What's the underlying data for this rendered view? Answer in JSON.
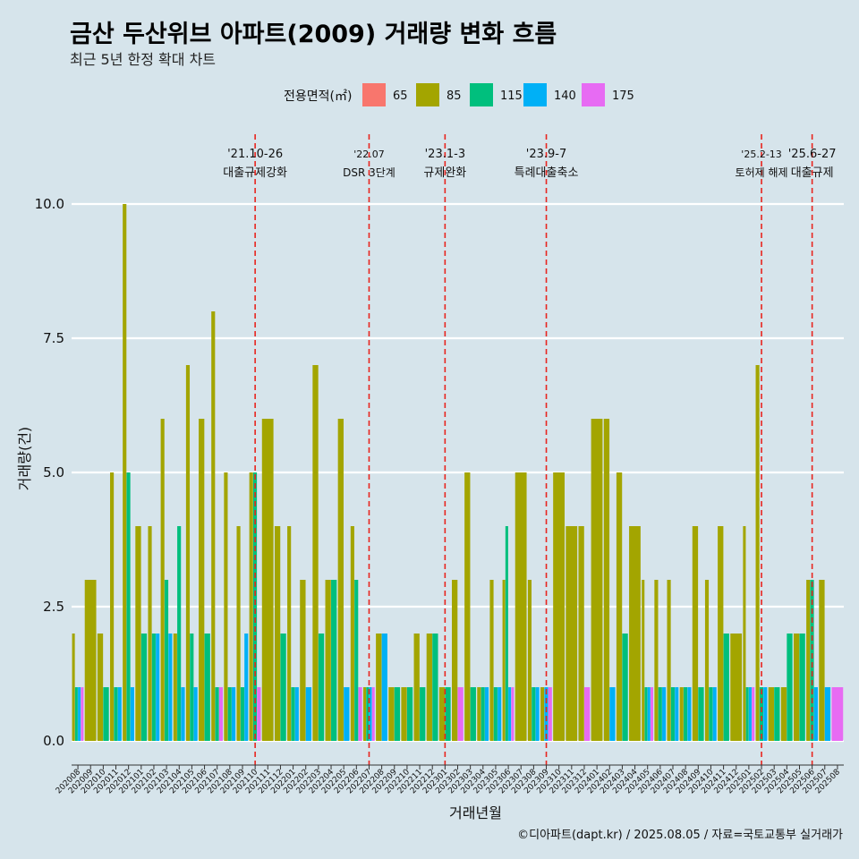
{
  "title": "금산 두산위브 아파트(2009) 거래량 변화 흐름",
  "subtitle": "최근 5년 한정 확대 차트",
  "caption": "©디아파트(dapt.kr) / 2025.08.05 / 자료=국토교통부 실거래가",
  "chart_data": {
    "type": "bar",
    "xlabel": "거래년월",
    "ylabel": "거래량(건)",
    "ylim": [
      -0.45,
      11.3
    ],
    "yticks": [
      0.0,
      2.5,
      5.0,
      7.5,
      10.0
    ],
    "legend": {
      "title": "전용면적(㎡)",
      "position": "top"
    },
    "months": [
      "202008",
      "202009",
      "202010",
      "202011",
      "202012",
      "202101",
      "202102",
      "202103",
      "202104",
      "202105",
      "202106",
      "202107",
      "202108",
      "202109",
      "202110",
      "202111",
      "202112",
      "202201",
      "202202",
      "202203",
      "202204",
      "202205",
      "202206",
      "202207",
      "202208",
      "202209",
      "202210",
      "202211",
      "202212",
      "202301",
      "202302",
      "202303",
      "202304",
      "202305",
      "202306",
      "202307",
      "202308",
      "202309",
      "202310",
      "202311",
      "202312",
      "202401",
      "202402",
      "202403",
      "202404",
      "202405",
      "202406",
      "202407",
      "202408",
      "202409",
      "202410",
      "202411",
      "202412",
      "202501",
      "202502",
      "202503",
      "202504",
      "202505",
      "202506",
      "202507",
      "202508"
    ],
    "series": [
      {
        "name": "65",
        "color": "#f8766d",
        "values": [
          0,
          0,
          0,
          0,
          0,
          0,
          0,
          0,
          0,
          0,
          0,
          0,
          0,
          0,
          0,
          0,
          0,
          0,
          0,
          0,
          0,
          0,
          0,
          0,
          0,
          0,
          0,
          0,
          0,
          0,
          0,
          0,
          0,
          0,
          0,
          0,
          0,
          0,
          0,
          0,
          0,
          0,
          0,
          0,
          0,
          0,
          0,
          0,
          0,
          0,
          0,
          0,
          0,
          0,
          0,
          0,
          0,
          0,
          0,
          0,
          0
        ]
      },
      {
        "name": "85",
        "color": "#a3a500",
        "values": [
          2,
          3,
          2,
          5,
          10,
          4,
          4,
          6,
          2,
          7,
          6,
          8,
          5,
          4,
          5,
          6,
          4,
          4,
          3,
          7,
          3,
          6,
          4,
          1,
          2,
          1,
          1,
          2,
          2,
          1,
          3,
          5,
          1,
          3,
          3,
          5,
          3,
          1,
          5,
          4,
          4,
          6,
          6,
          5,
          4,
          3,
          3,
          3,
          1,
          4,
          3,
          4,
          2,
          4,
          7,
          1,
          1,
          2,
          3,
          3,
          0
        ]
      },
      {
        "name": "115",
        "color": "#00bf7d",
        "values": [
          1,
          0,
          1,
          1,
          5,
          2,
          2,
          3,
          4,
          2,
          2,
          1,
          1,
          1,
          5,
          0,
          2,
          1,
          0,
          2,
          3,
          0,
          3,
          1,
          0,
          1,
          1,
          1,
          2,
          1,
          0,
          1,
          1,
          1,
          4,
          0,
          1,
          0,
          0,
          0,
          0,
          0,
          0,
          2,
          0,
          1,
          1,
          1,
          1,
          1,
          1,
          2,
          0,
          1,
          1,
          1,
          2,
          2,
          3,
          0,
          0
        ]
      },
      {
        "name": "140",
        "color": "#00b0f6",
        "values": [
          1,
          0,
          0,
          1,
          1,
          0,
          2,
          2,
          1,
          1,
          0,
          0,
          1,
          2,
          0,
          0,
          0,
          1,
          1,
          0,
          0,
          1,
          0,
          1,
          2,
          0,
          0,
          0,
          0,
          0,
          0,
          0,
          1,
          1,
          1,
          0,
          1,
          1,
          0,
          0,
          0,
          0,
          1,
          0,
          0,
          1,
          1,
          1,
          1,
          0,
          1,
          0,
          0,
          1,
          1,
          0,
          0,
          0,
          1,
          1,
          0
        ]
      },
      {
        "name": "175",
        "color": "#e76bf3",
        "values": [
          1,
          0,
          0,
          0,
          0,
          0,
          0,
          0,
          0,
          0,
          0,
          1,
          0,
          0,
          1,
          0,
          0,
          0,
          0,
          0,
          0,
          0,
          1,
          1,
          0,
          0,
          0,
          0,
          0,
          0,
          1,
          0,
          0,
          0,
          1,
          0,
          0,
          1,
          0,
          0,
          1,
          0,
          0,
          0,
          0,
          1,
          0,
          0,
          0,
          0,
          0,
          0,
          0,
          1,
          0,
          0,
          0,
          0,
          0,
          0,
          1
        ]
      }
    ],
    "annotations": [
      {
        "month": "202110",
        "date": "'21.10-26",
        "label": "대출규제강화"
      },
      {
        "month": "202207",
        "date": "'22.07",
        "label": "DSR 3단계"
      },
      {
        "month": "202301",
        "date": "'23.1-3",
        "label": "규제완화"
      },
      {
        "month": "202309",
        "date": "'23.9-7",
        "label": "특례대출축소"
      },
      {
        "month": "202502",
        "date": "'25.2-13",
        "label": "토허제 해제"
      },
      {
        "month": "202506",
        "date": "'25.6-27",
        "label": "대출규제"
      }
    ]
  }
}
